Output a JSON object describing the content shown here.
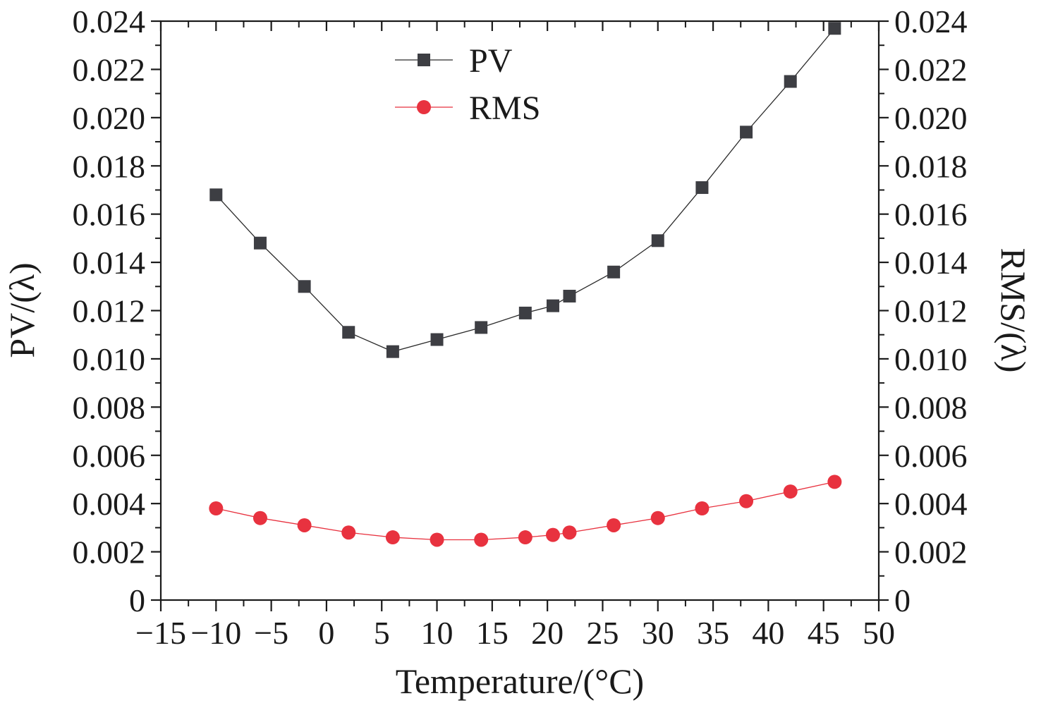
{
  "chart_data": {
    "type": "line",
    "title": "",
    "xlabel": "Temperature/(°C)",
    "ylabel_left": "PV/(λ)",
    "ylabel_right": "RMS/(λ)",
    "xlim": [
      -15,
      50
    ],
    "ylim": [
      0,
      0.024
    ],
    "x_ticks": [
      "−15",
      "−10",
      "−5",
      "0",
      "5",
      "10",
      "15",
      "20",
      "25",
      "30",
      "35",
      "40",
      "45",
      "50"
    ],
    "y_ticks": [
      "0",
      "0.002",
      "0.004",
      "0.006",
      "0.008",
      "0.010",
      "0.012",
      "0.014",
      "0.016",
      "0.018",
      "0.020",
      "0.022",
      "0.024"
    ],
    "legend_position": "top-center",
    "series": [
      {
        "name": "PV",
        "marker": "square",
        "color": "#3d3e43",
        "line_color": "#2a2a2a",
        "x": [
          -10,
          -6,
          -2,
          2,
          6,
          10,
          14,
          18,
          20.5,
          22,
          26,
          30,
          34,
          38,
          42,
          46
        ],
        "y": [
          0.0168,
          0.0148,
          0.013,
          0.0111,
          0.0103,
          0.0108,
          0.0113,
          0.0119,
          0.0122,
          0.0126,
          0.0136,
          0.0149,
          0.0171,
          0.0194,
          0.0215,
          0.0237
        ]
      },
      {
        "name": "RMS",
        "marker": "circle",
        "color": "#e8323f",
        "line_color": "#e8323f",
        "x": [
          -10,
          -6,
          -2,
          2,
          6,
          10,
          14,
          18,
          20.5,
          22,
          26,
          30,
          34,
          38,
          42,
          46
        ],
        "y": [
          0.0038,
          0.0034,
          0.0031,
          0.0028,
          0.0026,
          0.0025,
          0.0025,
          0.0026,
          0.0027,
          0.0028,
          0.0031,
          0.0034,
          0.0038,
          0.0041,
          0.0045,
          0.0049
        ]
      }
    ]
  }
}
